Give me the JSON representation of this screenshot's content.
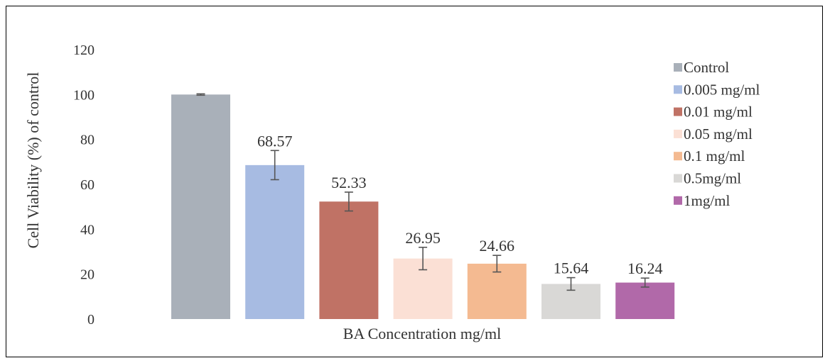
{
  "chart_data": {
    "type": "bar",
    "xlabel": "BA Concentration mg/ml",
    "ylabel": "Cell Viability (%) of control",
    "ylim": [
      0,
      120
    ],
    "yticks": [
      0,
      20,
      40,
      60,
      80,
      100,
      120
    ],
    "grid": false,
    "legend_position": "right",
    "series": [
      {
        "name": "Control",
        "value": 100,
        "error": 0.3,
        "label": "",
        "color": "#a9b0b9"
      },
      {
        "name": "0.005 mg/ml",
        "value": 68.57,
        "error": 6.5,
        "label": "68.57",
        "color": "#a7bbe2"
      },
      {
        "name": "0.01 mg/ml",
        "value": 52.33,
        "error": 4.2,
        "label": "52.33",
        "color": "#c07265"
      },
      {
        "name": "0.05 mg/ml",
        "value": 26.95,
        "error": 5.0,
        "label": "26.95",
        "color": "#fbe0d5"
      },
      {
        "name": "0.1 mg/ml",
        "value": 24.66,
        "error": 3.7,
        "label": "24.66",
        "color": "#f4ba91"
      },
      {
        "name": "0.5mg/ml",
        "value": 15.64,
        "error": 2.8,
        "label": "15.64",
        "color": "#d9d8d6"
      },
      {
        "name": "1mg/ml",
        "value": 16.24,
        "error": 2.0,
        "label": "16.24",
        "color": "#b169a9"
      }
    ]
  }
}
